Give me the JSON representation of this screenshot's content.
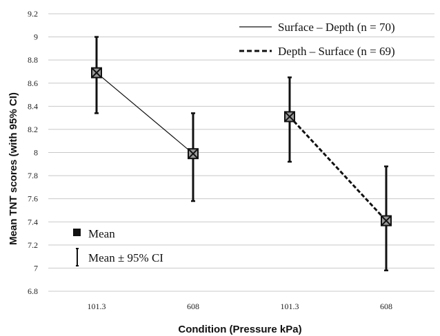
{
  "chart_data": {
    "type": "line",
    "title": "",
    "xlabel": "Condition  (Pressure kPa)",
    "ylabel": "Mean TNT scores (with 95% CI)",
    "categories": [
      "101.3",
      "608",
      "101.3",
      "608"
    ],
    "ylim": [
      6.8,
      9.2
    ],
    "ytick_step": 0.2,
    "yticks": [
      "6.8",
      "7",
      "7.2",
      "7.4",
      "7.6",
      "7.8",
      "8",
      "8.2",
      "8.4",
      "8.6",
      "8.8",
      "9",
      "9.2"
    ],
    "grid": true,
    "legend_position": "top-right",
    "series": [
      {
        "name": "Surface – Depth (n = 70)",
        "line_style": "solid",
        "x_index": [
          0,
          1
        ],
        "mean": [
          8.69,
          7.99
        ],
        "ci_low": [
          8.34,
          7.58
        ],
        "ci_high": [
          9.0,
          8.34
        ]
      },
      {
        "name": "Depth – Surface (n = 69)",
        "line_style": "dashed",
        "x_index": [
          2,
          3
        ],
        "mean": [
          8.31,
          7.41
        ],
        "ci_low": [
          7.92,
          6.98
        ],
        "ci_high": [
          8.65,
          7.88
        ]
      }
    ],
    "key": {
      "mean_label": "Mean",
      "ci_label": "Mean ± 95% CI"
    },
    "colors": {
      "line": "#111111",
      "marker_fill": "#9a9a9a",
      "grid": "#c8c8c8"
    }
  }
}
